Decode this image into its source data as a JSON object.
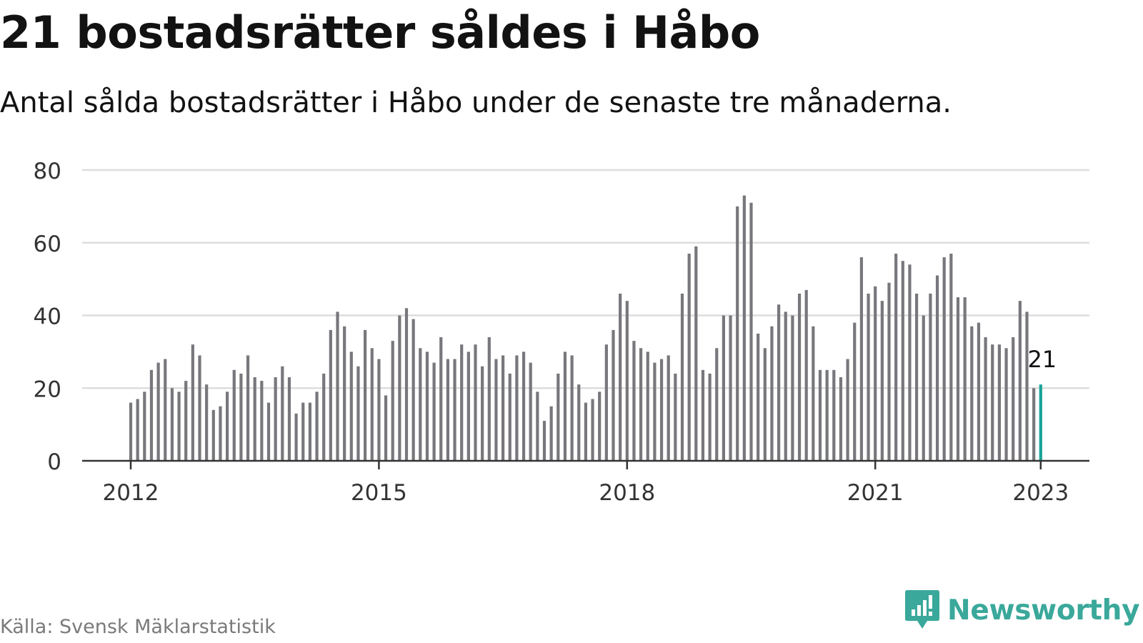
{
  "title": "21 bostadsrätter såldes i Håbo",
  "subtitle": "Antal sålda bostadsrätter i Håbo under de senaste tre månaderna.",
  "source": "Källa: Svensk Mäklarstatistik",
  "brand": {
    "name": "Newsworthy",
    "icon": "newsworthy-logo-icon",
    "color": "#3aa89a"
  },
  "colors": {
    "bar": "#77777c",
    "highlight": "#1aa398",
    "grid": "#dddddd",
    "axis": "#333333",
    "text": "#121212"
  },
  "chart_data": {
    "type": "bar",
    "title": "21 bostadsrätter såldes i Håbo",
    "subtitle": "Antal sålda bostadsrätter i Håbo under de senaste tre månaderna.",
    "xlabel": "",
    "ylabel": "",
    "ylim": [
      0,
      80
    ],
    "yticks": [
      0,
      20,
      40,
      60,
      80
    ],
    "xticks": [
      "2012",
      "2015",
      "2018",
      "2021",
      "2023"
    ],
    "x_start": "2012-01",
    "x_end": "2023-01",
    "grid": true,
    "legend": "none",
    "highlight_label": "21",
    "values": [
      16,
      17,
      19,
      25,
      27,
      28,
      20,
      19,
      22,
      32,
      29,
      21,
      14,
      15,
      19,
      25,
      24,
      29,
      23,
      22,
      16,
      23,
      26,
      23,
      13,
      16,
      16,
      19,
      24,
      36,
      41,
      37,
      30,
      26,
      36,
      31,
      28,
      18,
      33,
      40,
      42,
      39,
      31,
      30,
      27,
      34,
      28,
      28,
      32,
      30,
      32,
      26,
      34,
      28,
      29,
      24,
      29,
      30,
      27,
      19,
      11,
      15,
      24,
      30,
      29,
      21,
      16,
      17,
      19,
      32,
      36,
      46,
      44,
      33,
      31,
      30,
      27,
      28,
      29,
      24,
      46,
      57,
      59,
      25,
      24,
      31,
      40,
      40,
      70,
      73,
      71,
      35,
      31,
      37,
      43,
      41,
      40,
      46,
      47,
      37,
      25,
      25,
      25,
      23,
      28,
      38,
      56,
      46,
      48,
      44,
      49,
      57,
      55,
      54,
      46,
      40,
      46,
      51,
      56,
      57,
      45,
      45,
      37,
      38,
      34,
      32,
      32,
      31,
      34,
      44,
      41,
      20,
      21
    ]
  }
}
